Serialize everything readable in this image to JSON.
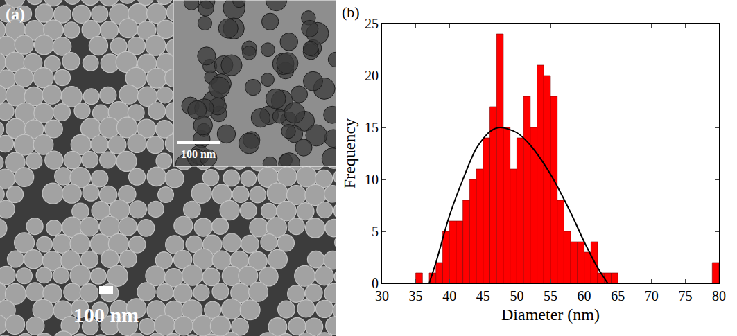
{
  "image_panel": {
    "label": "(a)",
    "scale_bar": "100 nm",
    "inset_scale_bar": "100 nm"
  },
  "chart_data": {
    "type": "histogram",
    "annotations": [
      "(b)"
    ],
    "x_label": "Diameter (nm)",
    "y_label": "Frequency",
    "bins": [
      35,
      36,
      37,
      38,
      39,
      40,
      41,
      42,
      43,
      44,
      45,
      46,
      47,
      48,
      49,
      50,
      51,
      52,
      53,
      54,
      55,
      56,
      57,
      58,
      59,
      60,
      61,
      62,
      63,
      64,
      65,
      66,
      67,
      68,
      69,
      70,
      71,
      72,
      73,
      74,
      75,
      76,
      77,
      78,
      79,
      80
    ],
    "values": [
      1,
      0,
      1,
      2,
      5,
      6,
      6,
      8,
      10,
      11,
      14,
      17,
      24,
      15,
      11,
      14,
      18,
      15,
      21,
      20,
      18,
      8,
      5,
      4,
      4,
      3,
      4,
      1,
      1,
      1,
      0,
      0,
      0,
      0,
      0,
      0,
      0,
      0,
      0,
      0,
      0,
      0,
      0,
      0,
      2
    ],
    "color": "#ff0000",
    "curve": {
      "type": "line",
      "color": "#000000",
      "x": [
        37,
        38,
        40,
        42,
        44,
        46,
        47.5,
        50,
        52,
        55,
        58,
        60,
        62,
        63.5
      ],
      "values": [
        0,
        2,
        6.5,
        10,
        13,
        14.6,
        15,
        14.5,
        13.3,
        10.5,
        6.8,
        4,
        1.5,
        0
      ]
    },
    "xlim": [
      30,
      80
    ],
    "ylim": [
      0,
      25
    ],
    "xticks": [
      30,
      35,
      40,
      45,
      50,
      55,
      60,
      65,
      70,
      75,
      80
    ],
    "yticks": [
      0,
      5,
      10,
      15,
      20,
      25
    ],
    "grid": false
  }
}
